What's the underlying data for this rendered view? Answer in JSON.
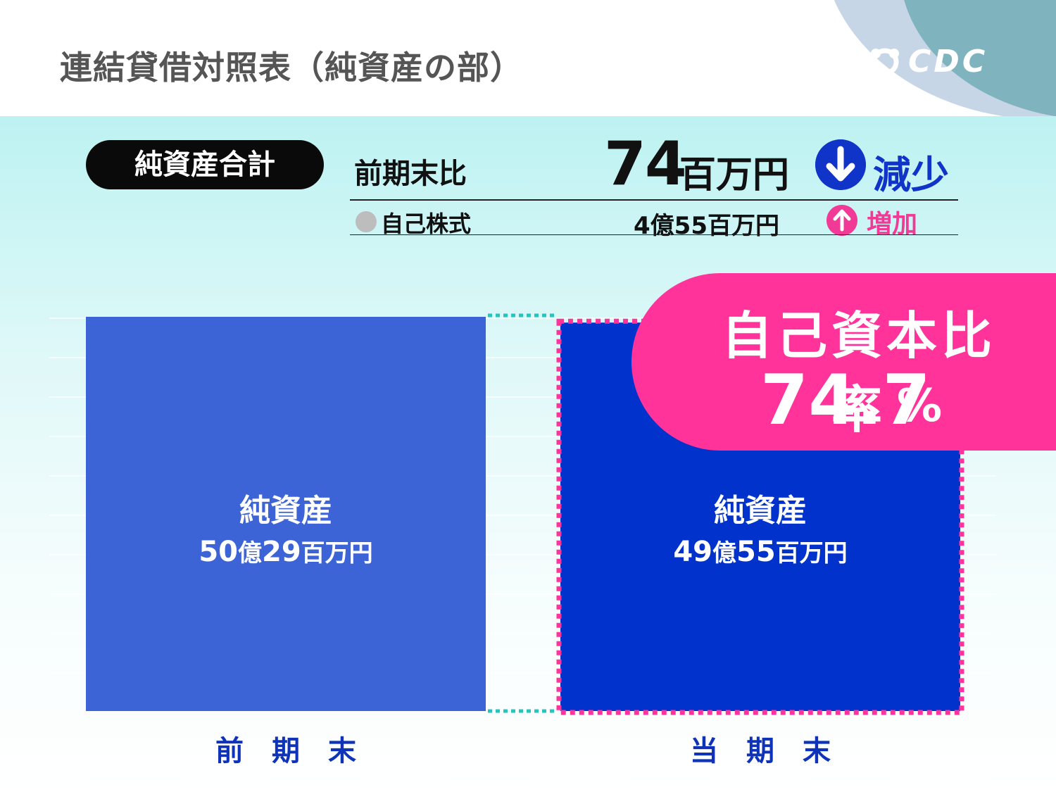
{
  "header": {
    "title": "連結貸借対照表（純資産の部）",
    "logo_text": "CDC"
  },
  "summary": {
    "pill_label": "純資産合計",
    "compare_label": "前期末比",
    "change_value": "74",
    "change_unit": "百万円",
    "change_direction": "減少",
    "treasury_label": "自己株式",
    "treasury_value": "4億55百万円",
    "treasury_direction": "増加"
  },
  "equity_ratio": {
    "title": "自己資本比率",
    "value": "74.7",
    "unit": "%"
  },
  "colors": {
    "prev_bar": "#3c64d6",
    "curr_bar": "#0232cc",
    "accent_pink": "#ff3399",
    "connector_teal": "#27c4bd",
    "down_blue": "#1034c8"
  },
  "chart_data": {
    "type": "bar",
    "categories": [
      "前　期　末",
      "当　期　末"
    ],
    "values": [
      5029,
      4955
    ],
    "unit": "百万円",
    "bar_titles": [
      "純資産",
      "純資産"
    ],
    "bar_value_labels": [
      {
        "num1": "50",
        "u1": "億",
        "num2": "29",
        "u2": "百万円"
      },
      {
        "num1": "49",
        "u1": "億",
        "num2": "55",
        "u2": "百万円"
      }
    ],
    "grid": true
  }
}
